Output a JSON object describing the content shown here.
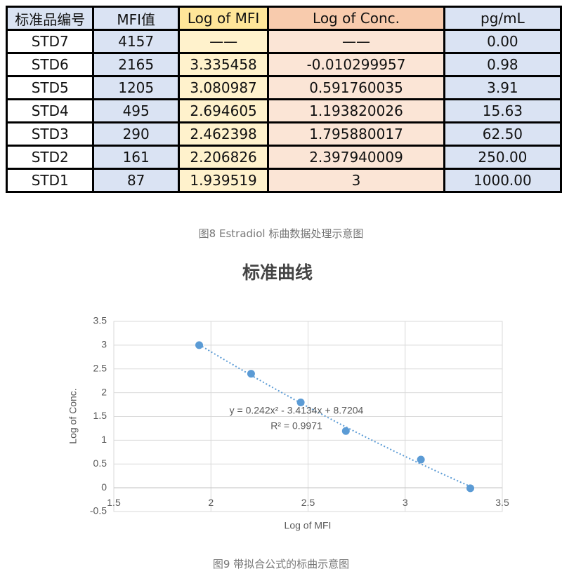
{
  "table": {
    "header": [
      "标准品编号",
      "MFI值",
      "Log of MFI",
      "Log of Conc.",
      "pg/mL"
    ],
    "rows": [
      [
        "STD7",
        "4157",
        "——",
        "——",
        "0.00"
      ],
      [
        "STD6",
        "2165",
        "3.335458",
        "-0.010299957",
        "0.98"
      ],
      [
        "STD5",
        "1205",
        "3.080987",
        "0.591760035",
        "3.91"
      ],
      [
        "STD4",
        "495",
        "2.694605",
        "1.193820026",
        "15.63"
      ],
      [
        "STD3",
        "290",
        "2.462398",
        "1.795880017",
        "62.50"
      ],
      [
        "STD2",
        "161",
        "2.206826",
        "2.397940009",
        "250.00"
      ],
      [
        "STD1",
        "87",
        "1.939519",
        "3",
        "1000.00"
      ]
    ]
  },
  "caption_table": "图8 Estradiol 标曲数据处理示意图",
  "chart_data": {
    "type": "scatter",
    "title": "标准曲线",
    "x_label": "Log of MFI",
    "y_label": "Log of Conc.",
    "series": [
      {
        "name": "Log of Conc.",
        "color": "#5b9bd5",
        "x": [
          1.939519,
          2.206826,
          2.462398,
          2.694605,
          3.080987,
          3.335458
        ],
        "values": [
          3,
          2.397940009,
          1.795880017,
          1.193820026,
          0.591760035,
          -0.010299957
        ]
      }
    ],
    "trendline": {
      "coefficients": [
        8.7204,
        -3.4134,
        0.242
      ],
      "label": "y = 0.242x² - 3.4134x + 8.7204",
      "r2_label": "R² = 0.9971"
    },
    "xlim": [
      1.5,
      3.5
    ],
    "xticks": [
      1.5,
      2,
      2.5,
      3,
      3.5
    ],
    "ylim": [
      -0.5,
      3.5
    ],
    "yticks": [
      -0.5,
      0,
      0.5,
      1,
      1.5,
      2,
      2.5,
      3,
      3.5
    ],
    "grid": true
  },
  "caption_chart": "图9 带拟合公式的标曲示意图"
}
